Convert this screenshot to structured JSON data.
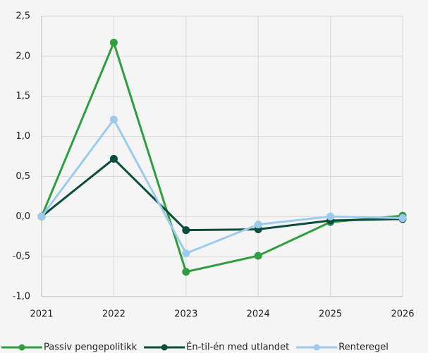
{
  "chart_data": {
    "type": "line",
    "categories": [
      "2021",
      "2022",
      "2023",
      "2024",
      "2025",
      "2026"
    ],
    "series": [
      {
        "name": "Passiv pengepolitikk",
        "color": "#2e9e3e",
        "values": [
          0,
          2.17,
          -0.69,
          -0.49,
          -0.07,
          0.01
        ]
      },
      {
        "name": "Én-til-én med utlandet",
        "color": "#0b4d3c",
        "values": [
          0,
          0.72,
          -0.17,
          -0.16,
          -0.05,
          -0.03
        ]
      },
      {
        "name": "Renteregel",
        "color": "#9ccbec",
        "values": [
          0,
          1.21,
          -0.46,
          -0.1,
          0.0,
          -0.02
        ]
      }
    ],
    "ylim": [
      -1.0,
      2.5
    ],
    "yticks": [
      {
        "value": -1.0,
        "label": "-1,0"
      },
      {
        "value": -0.5,
        "label": "-0,5"
      },
      {
        "value": 0.0,
        "label": "0,0"
      },
      {
        "value": 0.5,
        "label": "0,5"
      },
      {
        "value": 1.0,
        "label": "1,0"
      },
      {
        "value": 1.5,
        "label": "1,5"
      },
      {
        "value": 2.0,
        "label": "2,0"
      },
      {
        "value": 2.5,
        "label": "2,5"
      }
    ],
    "grid": true,
    "legend": "bottom"
  }
}
